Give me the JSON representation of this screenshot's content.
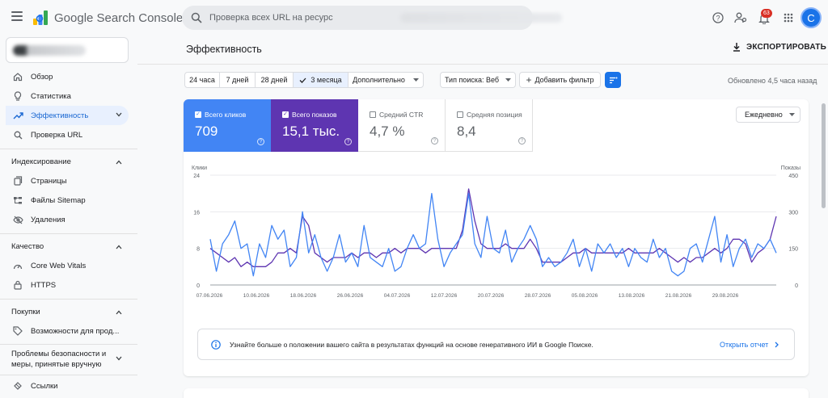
{
  "app": {
    "brand": "Google Search Console",
    "search_placeholder": "Проверка всех URL на ресурс",
    "notifications_count": "63",
    "avatar_letter": "C"
  },
  "icons": {
    "menu": "hamburger-icon",
    "search": "search-icon",
    "help": "help-icon",
    "users": "manage-users-icon",
    "bell": "bell-icon",
    "apps": "apps-grid-icon"
  },
  "sidebar": {
    "top_items": [
      {
        "label": "Обзор",
        "icon": "home-icon"
      },
      {
        "label": "Статистика",
        "icon": "lightbulb-icon"
      },
      {
        "label": "Эффективность",
        "icon": "trending-up-icon",
        "active": true
      },
      {
        "label": "Проверка URL",
        "icon": "search-icon"
      }
    ],
    "sections": [
      {
        "title": "Индексирование",
        "items": [
          {
            "label": "Страницы",
            "icon": "pages-icon"
          },
          {
            "label": "Файлы Sitemap",
            "icon": "sitemap-icon"
          },
          {
            "label": "Удаления",
            "icon": "eye-off-icon"
          }
        ]
      },
      {
        "title": "Качество",
        "items": [
          {
            "label": "Core Web Vitals",
            "icon": "speed-icon"
          },
          {
            "label": "HTTPS",
            "icon": "lock-icon"
          }
        ]
      },
      {
        "title": "Покупки",
        "items": [
          {
            "label": "Возможности для прод...",
            "icon": "tag-icon"
          }
        ]
      },
      {
        "title": "Проблемы безопасности и меры, принятые вручную",
        "items": []
      },
      {
        "title": "",
        "items": [
          {
            "label": "Ссылки",
            "icon": "links-icon"
          }
        ]
      }
    ]
  },
  "main": {
    "title": "Эффективность",
    "export_label": "ЭКСПОРТИРОВАТЬ",
    "date_chips": [
      "24 часа",
      "7 дней",
      "28 дней",
      "3 месяца",
      "Дополнительно"
    ],
    "selected_chip": "3 месяца",
    "search_type": "Тип поиска: Веб",
    "add_filter": "Добавить фильтр",
    "updated": "Обновлено 4,5 часа назад"
  },
  "metrics": [
    {
      "label": "Всего кликов",
      "value": "709",
      "checked": true,
      "color": "#4285f4"
    },
    {
      "label": "Всего показов",
      "value": "15,1 тыс.",
      "checked": true,
      "color": "#5e35b1"
    },
    {
      "label": "Средний CTR",
      "value": "4,7 %",
      "checked": false
    },
    {
      "label": "Средняя позиция",
      "value": "8,4",
      "checked": false
    }
  ],
  "granularity": "Ежедневно",
  "chart_data": {
    "type": "line",
    "left_axis": {
      "label": "Клики",
      "ticks": [
        "0",
        "8",
        "16",
        "24"
      ],
      "ylim": [
        0,
        24
      ]
    },
    "right_axis": {
      "label": "Показы",
      "ticks": [
        "0",
        "150",
        "300",
        "450"
      ],
      "ylim": [
        0,
        450
      ]
    },
    "x_ticks": [
      "07.06.2026",
      "10.06.2026",
      "18.06.2026",
      "26.06.2026",
      "04.07.2026",
      "12.07.2026",
      "20.07.2026",
      "28.07.2026",
      "05.08.2026",
      "13.08.2026",
      "21.08.2026",
      "29.08.2026"
    ],
    "series": [
      {
        "name": "Клики",
        "color": "#4285f4",
        "axis": "left",
        "values": [
          10,
          3,
          9,
          11,
          14,
          8,
          9,
          2,
          9,
          6,
          13,
          10,
          12,
          4,
          6,
          16,
          7,
          11,
          6,
          3,
          6,
          11,
          5,
          7,
          4,
          13,
          6,
          5,
          4,
          8,
          3,
          4,
          8,
          11,
          8,
          9,
          20,
          10,
          4,
          7,
          9,
          11,
          20,
          9,
          6,
          15,
          8,
          7,
          12,
          5,
          8,
          10,
          13,
          10,
          4,
          6,
          4,
          5,
          7,
          10,
          4,
          8,
          3,
          9,
          7,
          9,
          6,
          8,
          4,
          8,
          6,
          5,
          10,
          6,
          8,
          3,
          2,
          3,
          8,
          9,
          5,
          10,
          15,
          5,
          11,
          4,
          8,
          10,
          6,
          9,
          8,
          10,
          7
        ]
      },
      {
        "name": "Показы",
        "color": "#5e35b1",
        "axis": "left",
        "values": [
          8,
          7,
          6,
          5,
          6,
          4,
          5,
          4,
          4,
          4,
          5,
          7,
          7,
          8,
          7,
          15,
          13,
          7,
          6,
          5,
          6,
          6,
          6,
          7,
          6,
          7,
          7,
          6,
          7,
          7,
          8,
          7,
          8,
          8,
          8,
          7,
          8,
          8,
          8,
          8,
          8,
          12,
          21,
          14,
          9,
          8,
          8,
          8,
          9,
          8,
          8,
          8,
          10,
          8,
          5,
          5,
          5,
          5,
          6,
          7,
          7,
          8,
          7,
          7,
          7,
          7,
          7,
          7,
          8,
          7,
          7,
          7,
          7,
          8,
          7,
          6,
          5,
          6,
          5,
          6,
          6,
          7,
          8,
          7,
          8,
          10,
          10,
          9,
          5,
          7,
          8,
          10,
          15
        ]
      }
    ]
  },
  "banner": {
    "text": "Узнайте больше о положении вашего сайта в результатах функций на основе генеративного ИИ в Google Поиске.",
    "link": "Открыть отчет"
  }
}
